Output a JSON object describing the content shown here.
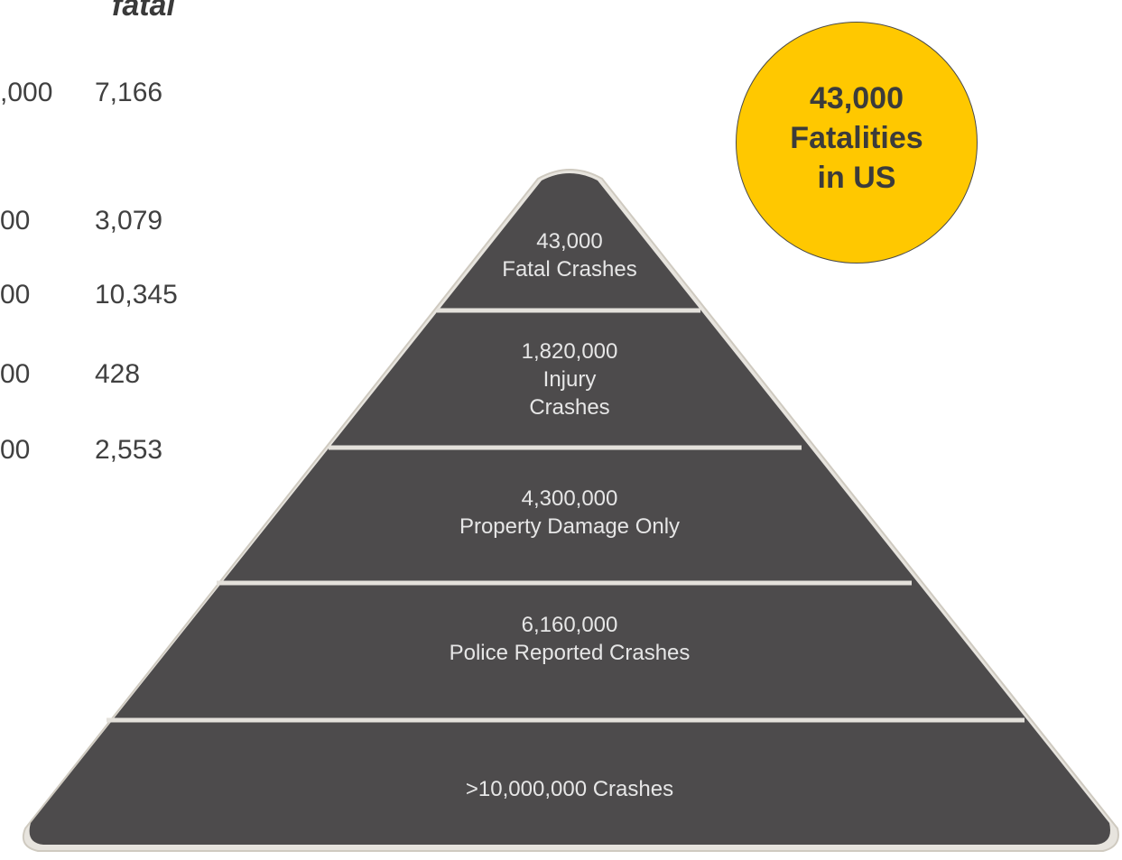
{
  "table": {
    "header_fatal": "fatal",
    "rows": [
      {
        "left": ",000",
        "fatal": "7,166"
      },
      {
        "left": "00",
        "fatal": "3,079"
      },
      {
        "left": "00",
        "fatal": "10,345"
      },
      {
        "left": "00",
        "fatal": "428"
      },
      {
        "left": "00",
        "fatal": "2,553"
      }
    ]
  },
  "pyramid": {
    "fill_color": "#4d4b4c",
    "edge_color": "#e8e6e1",
    "tiers": [
      {
        "count": "43,000",
        "label_lines": [
          "Fatal Crashes"
        ]
      },
      {
        "count": "1,820,000",
        "label_lines": [
          "Injury",
          "Crashes"
        ]
      },
      {
        "count": "4,300,000",
        "label_lines": [
          "Property Damage Only"
        ]
      },
      {
        "count": "6,160,000",
        "label_lines": [
          "Police Reported Crashes"
        ]
      },
      {
        "count": ">10,000,000 Crashes",
        "label_lines": []
      }
    ]
  },
  "badge": {
    "line1": "43,000",
    "line2": "Fatalities",
    "line3": "in US",
    "fill_color": "#ffc800"
  }
}
